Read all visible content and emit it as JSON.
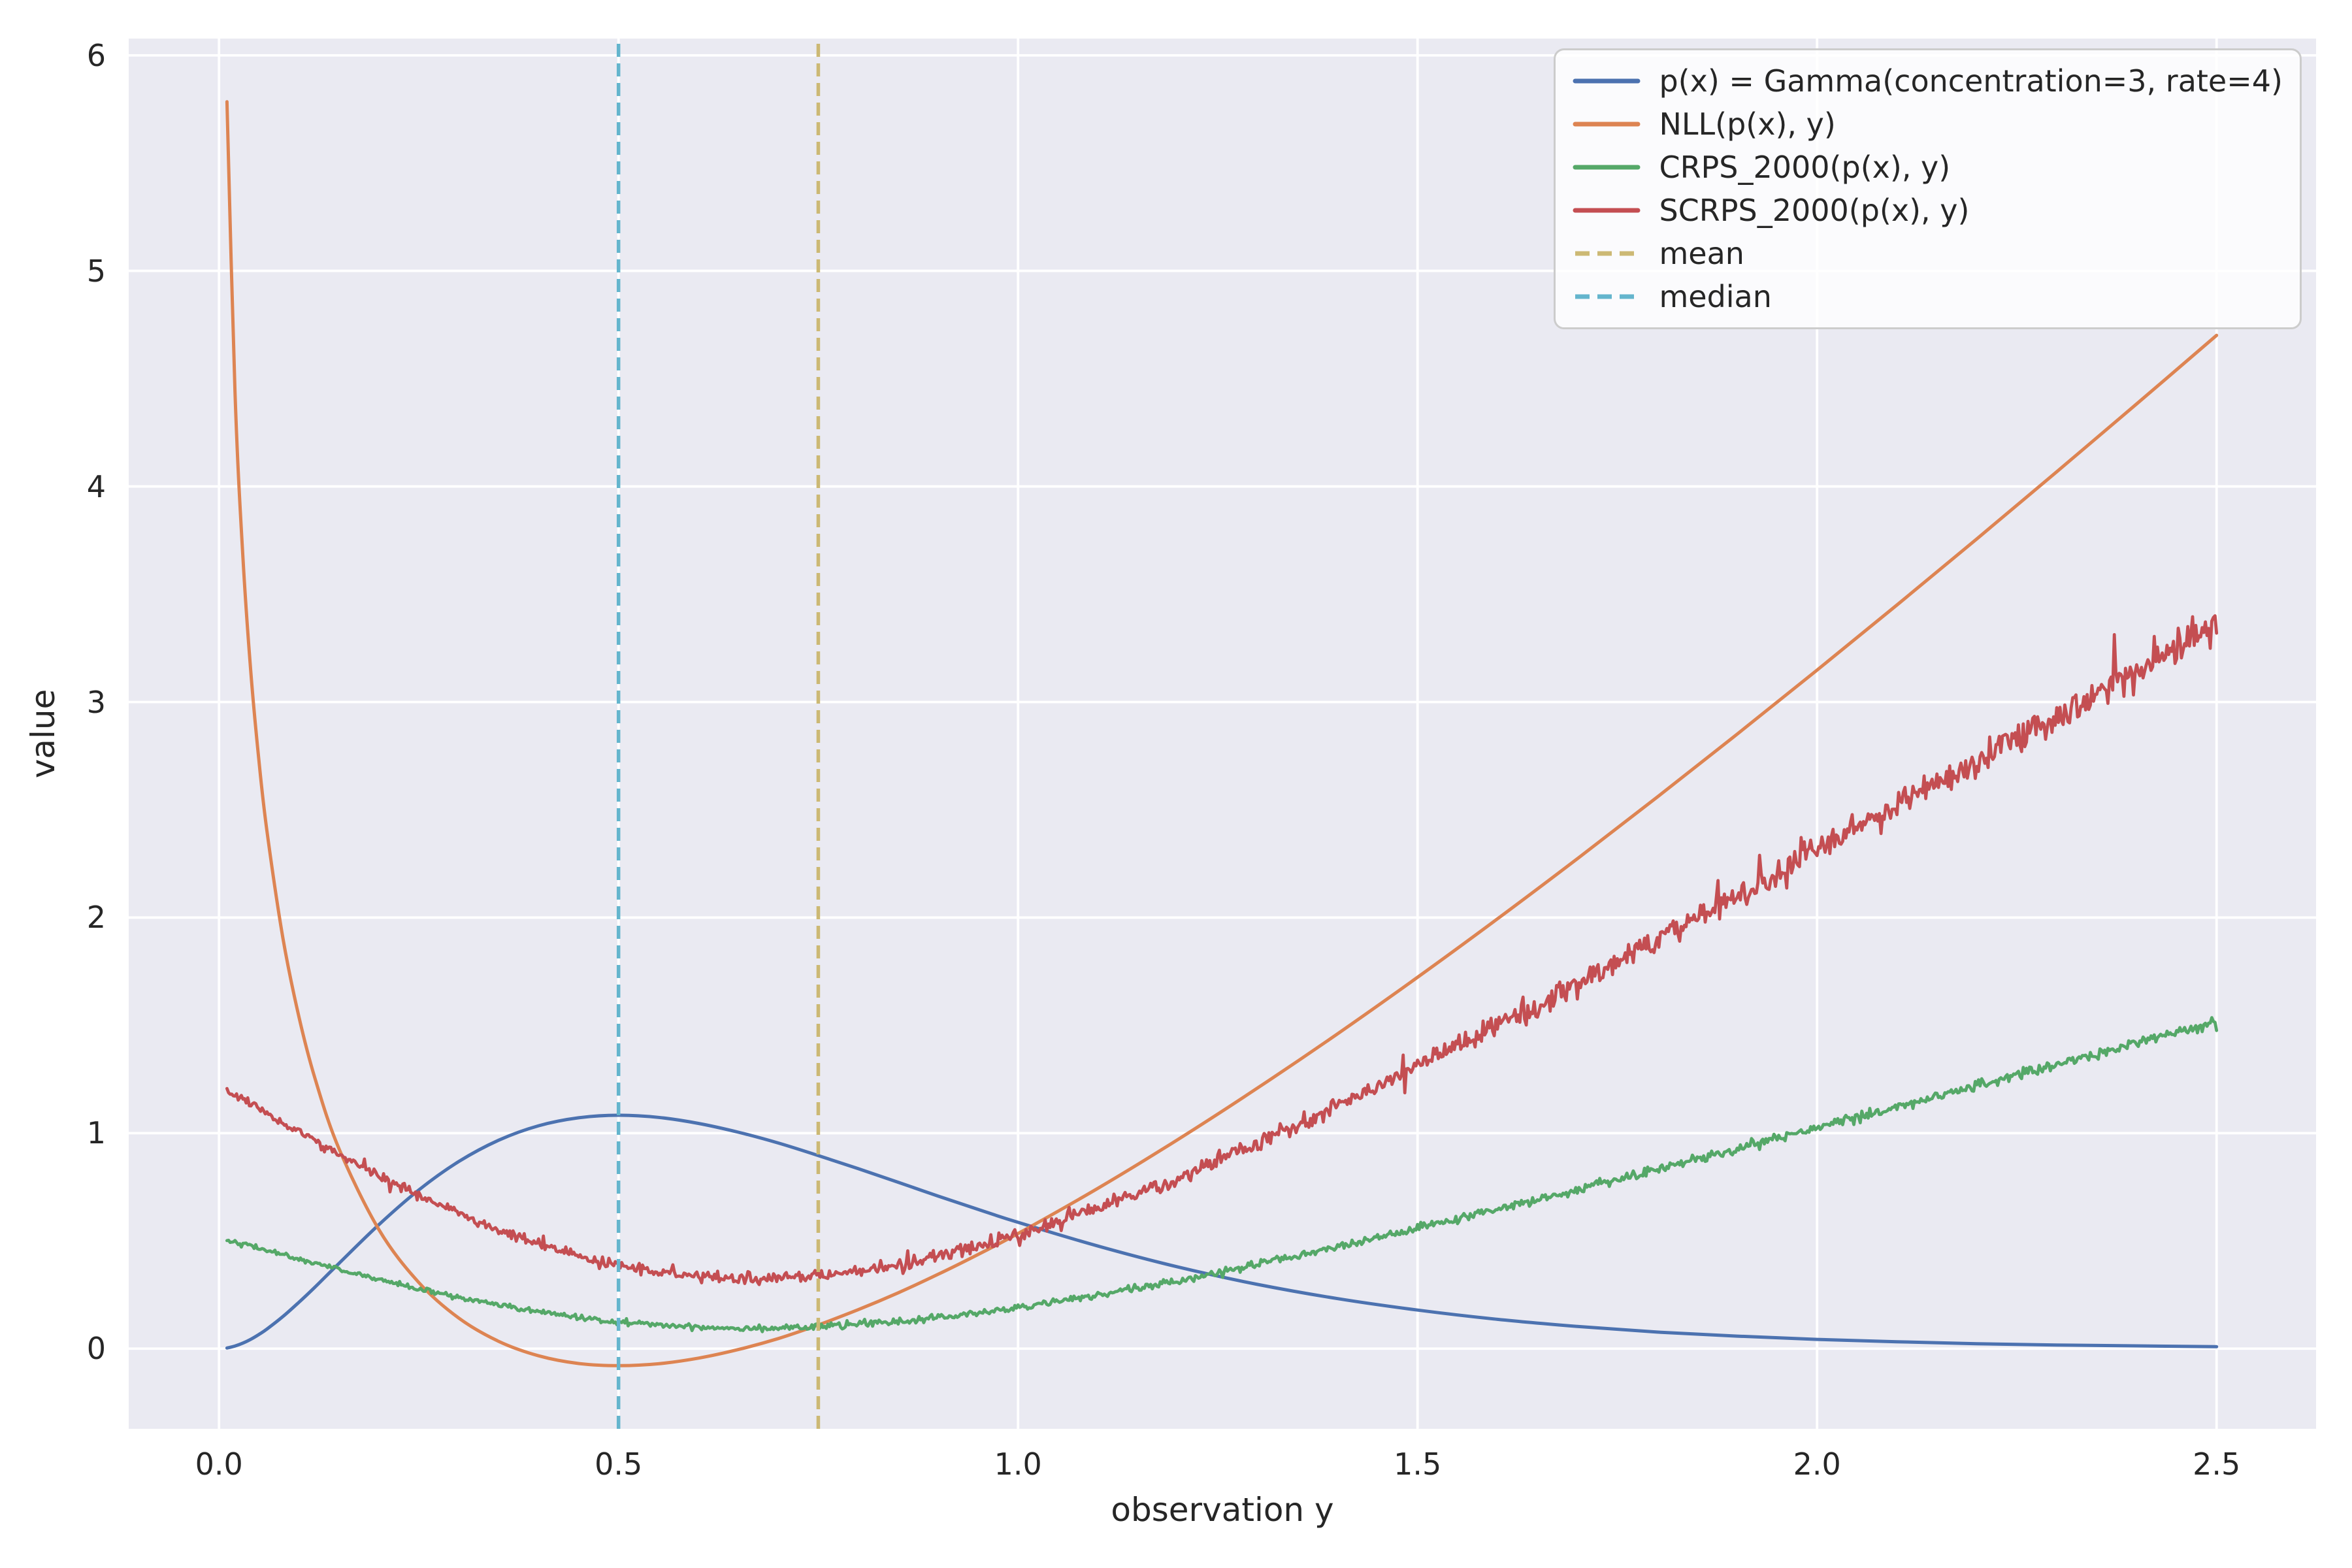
{
  "figure": {
    "background": "#ffffff",
    "text_color": "#262626"
  },
  "chart_data": {
    "type": "line",
    "xlabel": "observation y",
    "ylabel": "value",
    "xlim": [
      -0.113,
      2.6245
    ],
    "ylim": [
      -0.372,
      6.078
    ],
    "xticks": [
      0,
      0.5,
      1,
      1.5,
      2,
      2.5
    ],
    "xtick_labels": [
      "0.0",
      "0.5",
      "1.0",
      "1.5",
      "2.0",
      "2.5"
    ],
    "yticks": [
      0,
      1,
      2,
      3,
      4,
      5,
      6
    ],
    "ytick_labels": [
      "0",
      "1",
      "2",
      "3",
      "4",
      "5",
      "6"
    ],
    "grid": true,
    "axes_background": "#eaeaf2",
    "grid_color": "#ffffff",
    "legend": {
      "position": "upper right",
      "background": "rgba(255,255,255,0.8)",
      "border_color": "#cccccc"
    },
    "x": [
      0.01,
      0.02,
      0.03,
      0.04,
      0.05,
      0.06,
      0.08,
      0.1,
      0.12,
      0.15,
      0.2,
      0.25,
      0.3,
      0.35,
      0.4,
      0.45,
      0.5,
      0.55,
      0.6,
      0.65,
      0.7,
      0.75,
      0.8,
      0.85,
      0.9,
      0.95,
      1.0,
      1.1,
      1.2,
      1.3,
      1.4,
      1.5,
      1.6,
      1.7,
      1.8,
      1.9,
      2.0,
      2.1,
      2.2,
      2.3,
      2.4,
      2.5
    ],
    "series": [
      {
        "name": "p(x) = Gamma(concentration=3, rate=4)",
        "color": "#4c72b0",
        "line_style": "solid",
        "smooth": true,
        "y": [
          0.003,
          0.012,
          0.026,
          0.044,
          0.066,
          0.091,
          0.149,
          0.215,
          0.285,
          0.395,
          0.575,
          0.736,
          0.868,
          0.967,
          1.034,
          1.071,
          1.083,
          1.073,
          1.045,
          1.004,
          0.954,
          0.896,
          0.835,
          0.772,
          0.708,
          0.646,
          0.586,
          0.476,
          0.379,
          0.298,
          0.232,
          0.179,
          0.136,
          0.103,
          0.077,
          0.058,
          0.043,
          0.032,
          0.023,
          0.017,
          0.013,
          0.009
        ]
      },
      {
        "name": "NLL(p(x), y)",
        "color": "#dd8452",
        "line_style": "solid",
        "smooth": true,
        "y": [
          5.785,
          4.438,
          3.667,
          3.132,
          2.726,
          2.401,
          1.905,
          1.54,
          1.255,
          0.929,
          0.553,
          0.307,
          0.142,
          0.034,
          -0.033,
          -0.069,
          -0.079,
          -0.07,
          -0.044,
          -0.004,
          0.047,
          0.11,
          0.181,
          0.259,
          0.345,
          0.437,
          0.534,
          0.744,
          0.97,
          1.21,
          1.461,
          1.723,
          1.994,
          2.273,
          2.559,
          2.851,
          3.148,
          3.45,
          3.757,
          4.068,
          4.383,
          4.701
        ]
      },
      {
        "name": "CRPS_2000(p(x), y)",
        "color": "#55a868",
        "line_style": "solid",
        "smooth": false,
        "noise": {
          "seed": 42,
          "base": 0.005,
          "linear": 0.0032,
          "quad": 0,
          "spike_p": 0,
          "spike_mult": 1,
          "step": 0.002
        },
        "y": [
          0.506,
          0.496,
          0.486,
          0.476,
          0.466,
          0.456,
          0.436,
          0.416,
          0.397,
          0.368,
          0.321,
          0.277,
          0.237,
          0.202,
          0.171,
          0.145,
          0.125,
          0.11,
          0.1,
          0.096,
          0.096,
          0.102,
          0.112,
          0.126,
          0.144,
          0.165,
          0.19,
          0.248,
          0.315,
          0.39,
          0.471,
          0.556,
          0.646,
          0.738,
          0.832,
          0.927,
          1.024,
          1.122,
          1.22,
          1.319,
          1.418,
          1.517
        ]
      },
      {
        "name": "SCRPS_2000(p(x), y)",
        "color": "#c44e52",
        "line_style": "solid",
        "smooth": false,
        "noise": {
          "seed": 1337,
          "base": 0.01,
          "linear": 0,
          "quad": 0.0052,
          "spike_p": 0.05,
          "spike_mult": 2.2,
          "step": 0.002
        },
        "y": [
          1.2,
          1.178,
          1.158,
          1.136,
          1.114,
          1.094,
          1.051,
          1.008,
          0.967,
          0.905,
          0.806,
          0.713,
          0.628,
          0.551,
          0.485,
          0.43,
          0.387,
          0.355,
          0.335,
          0.325,
          0.326,
          0.338,
          0.359,
          0.389,
          0.427,
          0.473,
          0.526,
          0.649,
          0.793,
          0.953,
          1.125,
          1.308,
          1.498,
          1.695,
          1.895,
          2.099,
          2.306,
          2.514,
          2.723,
          2.934,
          3.146,
          3.358
        ]
      }
    ],
    "vlines": [
      {
        "name": "mean",
        "x": 0.75,
        "color": "#ccb974",
        "line_style": "dashed"
      },
      {
        "name": "median",
        "x": 0.5,
        "color": "#64b5cd",
        "line_style": "dashed"
      }
    ]
  }
}
